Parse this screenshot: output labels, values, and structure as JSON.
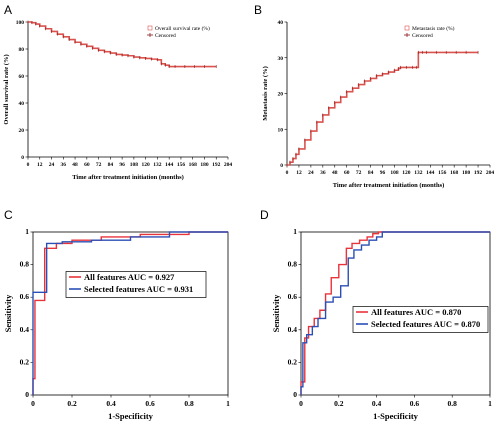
{
  "panels": [
    {
      "letter": "A"
    },
    {
      "letter": "B"
    },
    {
      "letter": "C"
    },
    {
      "letter": "D"
    }
  ],
  "chart_data": [
    {
      "type": "line",
      "xlabel": "Time after treatment initiation (months)",
      "ylabel": "Overall survival rate (%)",
      "xlim": [
        0,
        204
      ],
      "ylim": [
        0,
        100
      ],
      "xticks": [
        0,
        12,
        24,
        36,
        48,
        60,
        72,
        84,
        96,
        108,
        120,
        132,
        144,
        156,
        168,
        180,
        192,
        204
      ],
      "yticks": [
        0,
        20,
        40,
        60,
        80,
        100
      ],
      "grid": false,
      "legend_position": "top-right",
      "series": [
        {
          "name": "Overall survival rate (%)",
          "color": "#d9534f",
          "x": [
            0,
            4,
            8,
            12,
            18,
            24,
            30,
            36,
            42,
            48,
            54,
            60,
            66,
            72,
            78,
            84,
            90,
            96,
            102,
            108,
            114,
            120,
            126,
            132,
            136,
            140,
            144,
            150,
            160,
            170,
            180,
            192
          ],
          "y": [
            100,
            99.5,
            98.5,
            97,
            95,
            93,
            91,
            89,
            87,
            85,
            83.5,
            82,
            80.5,
            79,
            78,
            77,
            76,
            75.5,
            75,
            74,
            73.5,
            73,
            72.5,
            72,
            69,
            68,
            67,
            67,
            67,
            67,
            67,
            67
          ]
        }
      ],
      "censored_legend": "Censored"
    },
    {
      "type": "line",
      "xlabel": "Time after treatment initiation (months)",
      "ylabel": "Metastasis rate (%)",
      "xlim": [
        0,
        204
      ],
      "ylim": [
        0,
        40
      ],
      "xticks": [
        0,
        12,
        24,
        36,
        48,
        60,
        72,
        84,
        96,
        108,
        120,
        132,
        144,
        156,
        168,
        180,
        192,
        204
      ],
      "yticks": [
        0,
        10,
        20,
        30,
        40
      ],
      "grid": false,
      "legend_position": "top-right",
      "series": [
        {
          "name": "Metastasis rate (%)",
          "color": "#d9534f",
          "x": [
            0,
            3,
            6,
            9,
            12,
            18,
            24,
            30,
            36,
            42,
            48,
            54,
            60,
            66,
            72,
            78,
            84,
            90,
            96,
            102,
            108,
            112,
            114,
            120,
            126,
            130,
            132,
            136,
            140,
            150,
            160,
            170,
            180,
            192
          ],
          "y": [
            0,
            0.8,
            1.8,
            3,
            4.5,
            7,
            9.5,
            12,
            14,
            16,
            17.5,
            19,
            20.5,
            21.5,
            22.5,
            23.5,
            24.2,
            25,
            25.5,
            26,
            26.5,
            27,
            27.3,
            27.3,
            27.3,
            27.3,
            31.5,
            31.5,
            31.5,
            31.5,
            31.5,
            31.5,
            31.5,
            31.5
          ]
        }
      ],
      "censored_legend": "Censored"
    },
    {
      "type": "line",
      "xlabel": "1-Specificity",
      "ylabel": "Sensitivity",
      "xlim": [
        0,
        1
      ],
      "ylim": [
        0,
        1
      ],
      "xticks": [
        0,
        0.2,
        0.4,
        0.6,
        0.8,
        1
      ],
      "yticks": [
        0,
        0.2,
        0.4,
        0.6,
        0.8,
        1
      ],
      "grid": false,
      "legend_position": "center",
      "series": [
        {
          "name": "All features AUC = 0.927",
          "color": "#e8333a",
          "x": [
            0,
            0,
            0.01,
            0.01,
            0.06,
            0.06,
            0.12,
            0.12,
            0.2,
            0.2,
            0.35,
            0.35,
            0.55,
            0.55,
            0.8,
            0.8,
            1
          ],
          "y": [
            0,
            0.1,
            0.1,
            0.58,
            0.58,
            0.9,
            0.9,
            0.93,
            0.93,
            0.95,
            0.95,
            0.97,
            0.97,
            0.985,
            0.985,
            1,
            1
          ]
        },
        {
          "name": "Selected features AUC = 0.931",
          "color": "#2b4fb5",
          "x": [
            0,
            0,
            0.07,
            0.07,
            0.15,
            0.15,
            0.3,
            0.3,
            0.5,
            0.5,
            0.7,
            0.7,
            1
          ],
          "y": [
            0,
            0.63,
            0.63,
            0.93,
            0.93,
            0.94,
            0.94,
            0.95,
            0.95,
            0.97,
            0.97,
            1,
            1
          ]
        }
      ]
    },
    {
      "type": "line",
      "xlabel": "1-Specificity",
      "ylabel": "Sensitivity",
      "xlim": [
        0,
        1
      ],
      "ylim": [
        0,
        1
      ],
      "xticks": [
        0,
        0.2,
        0.4,
        0.6,
        0.8,
        1
      ],
      "yticks": [
        0,
        0.2,
        0.4,
        0.6,
        0.8,
        1
      ],
      "grid": false,
      "legend_position": "center-right",
      "series": [
        {
          "name": "All features AUC = 0.870",
          "color": "#e8333a",
          "x": [
            0,
            0,
            0.02,
            0.02,
            0.04,
            0.04,
            0.07,
            0.07,
            0.1,
            0.1,
            0.13,
            0.13,
            0.16,
            0.16,
            0.2,
            0.2,
            0.24,
            0.24,
            0.27,
            0.27,
            0.31,
            0.31,
            0.35,
            0.35,
            0.38,
            0.38,
            0.41,
            0.41,
            1
          ],
          "y": [
            0,
            0.08,
            0.08,
            0.35,
            0.35,
            0.42,
            0.42,
            0.47,
            0.47,
            0.52,
            0.52,
            0.62,
            0.62,
            0.72,
            0.72,
            0.8,
            0.8,
            0.9,
            0.9,
            0.93,
            0.93,
            0.95,
            0.95,
            0.97,
            0.97,
            0.99,
            0.99,
            1,
            1
          ]
        },
        {
          "name": "Selected features AUC = 0.870",
          "color": "#2b4fb5",
          "x": [
            0,
            0,
            0.01,
            0.01,
            0.03,
            0.03,
            0.06,
            0.06,
            0.09,
            0.09,
            0.13,
            0.13,
            0.17,
            0.17,
            0.21,
            0.21,
            0.25,
            0.25,
            0.28,
            0.28,
            0.32,
            0.32,
            0.36,
            0.36,
            0.4,
            0.4,
            0.43,
            0.43,
            1
          ],
          "y": [
            0,
            0.05,
            0.05,
            0.32,
            0.32,
            0.37,
            0.37,
            0.42,
            0.42,
            0.47,
            0.47,
            0.57,
            0.57,
            0.6,
            0.6,
            0.67,
            0.67,
            0.84,
            0.84,
            0.89,
            0.89,
            0.92,
            0.92,
            0.95,
            0.95,
            0.97,
            0.97,
            1,
            1
          ]
        }
      ]
    }
  ]
}
